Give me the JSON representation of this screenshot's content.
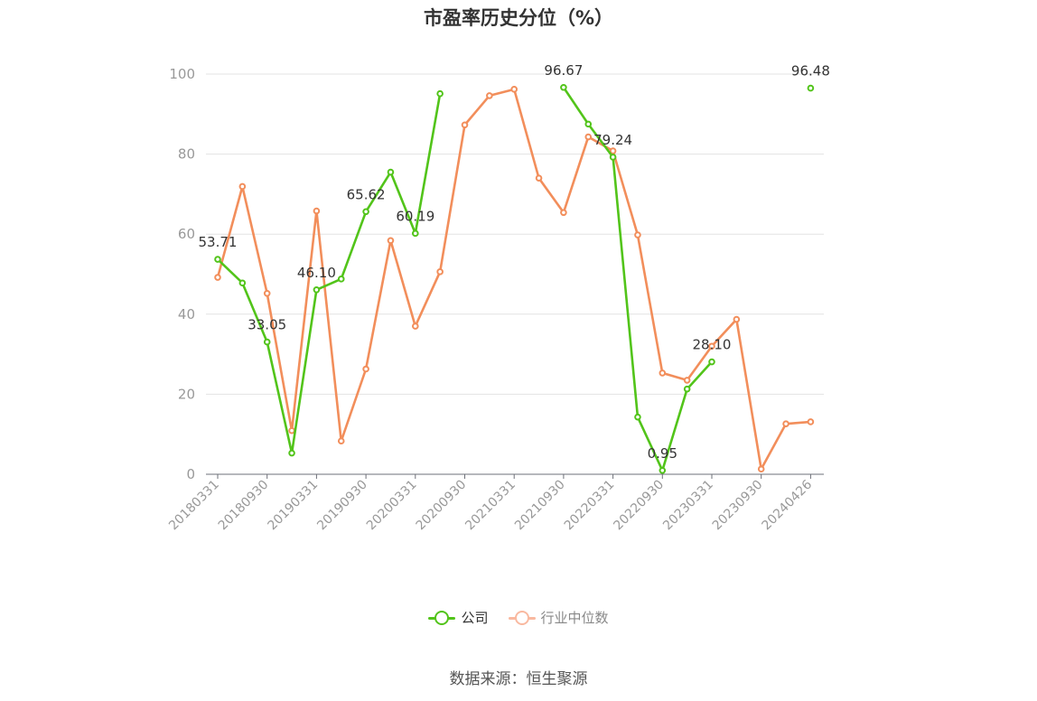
{
  "chart_data": {
    "type": "line",
    "title": "市盈率历史分位（%）",
    "xlabel": "",
    "ylabel": "",
    "ylim": [
      0,
      100
    ],
    "yticks": [
      0,
      20,
      40,
      60,
      80,
      100
    ],
    "grid": true,
    "legend_position": "bottom",
    "x": [
      "20180331",
      "20180630",
      "20180930",
      "20181231",
      "20190331",
      "20190630",
      "20190930",
      "20191231",
      "20200331",
      "20200630",
      "20200930",
      "20201231",
      "20210331",
      "20210630",
      "20210930",
      "20211231",
      "20220331",
      "20220630",
      "20220930",
      "20221231",
      "20230331",
      "20230630",
      "20230930",
      "20231231",
      "20240426"
    ],
    "x_tick_labels": [
      "20180331",
      "20180930",
      "20190331",
      "20190930",
      "20200331",
      "20200930",
      "20210331",
      "20210930",
      "20220331",
      "20220930",
      "20230331",
      "20230930",
      "20240426"
    ],
    "series": [
      {
        "name": "公司",
        "color": "#52c41a",
        "values": [
          53.71,
          47.8,
          33.05,
          5.3,
          46.1,
          48.8,
          65.62,
          75.5,
          60.19,
          95.1,
          null,
          null,
          null,
          null,
          96.67,
          87.5,
          79.24,
          14.3,
          0.95,
          21.3,
          28.1,
          null,
          null,
          null,
          96.48
        ],
        "labels": {
          "0": "53.71",
          "2": "33.05",
          "4": "46.10",
          "6": "65.62",
          "8": "60.19",
          "14": "96.67",
          "16": "79.24",
          "18": "0.95",
          "20": "28.10",
          "24": "96.48"
        }
      },
      {
        "name": "行业中位数",
        "color": "#f28e5b",
        "values": [
          49.2,
          71.9,
          45.2,
          10.9,
          65.8,
          8.3,
          26.3,
          58.4,
          37.0,
          50.6,
          87.3,
          94.6,
          96.2,
          74.0,
          65.4,
          84.3,
          80.8,
          59.8,
          25.3,
          23.5,
          32.0,
          38.7,
          1.3,
          12.6,
          13.1
        ]
      }
    ]
  },
  "legend": {
    "company_label": "公司",
    "industry_label": "行业中位数",
    "company_color": "#52c41a",
    "industry_color": "#f9b9a0"
  },
  "source": "数据来源：恒生聚源"
}
